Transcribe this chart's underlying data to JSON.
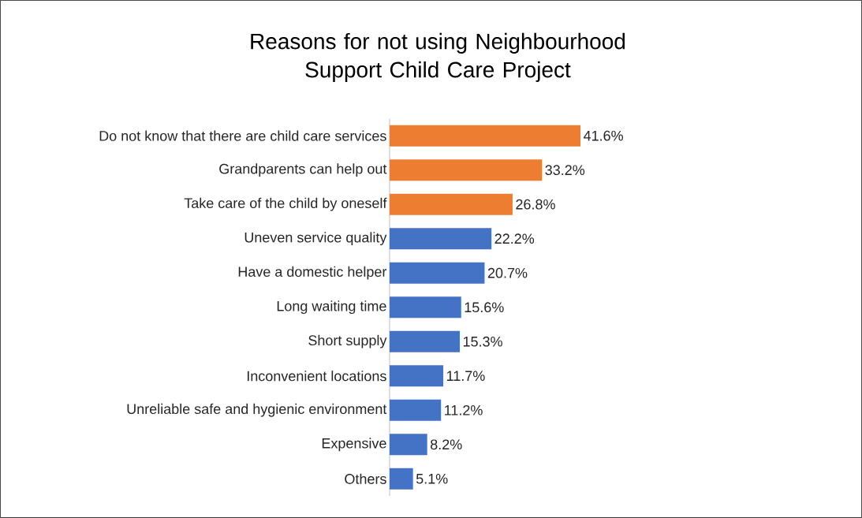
{
  "chart_data": {
    "type": "bar",
    "orientation": "horizontal",
    "title": "Reasons for not using Neighbourhood Support Child Care Project",
    "categories": [
      "Do not know that there are child care services",
      "Grandparents can help out",
      "Take care of the child by oneself",
      "Uneven service quality",
      "Have a domestic helper",
      "Long waiting time",
      "Short supply",
      "Inconvenient locations",
      "Unreliable safe and hygienic environment",
      "Expensive",
      "Others"
    ],
    "values": [
      41.6,
      33.2,
      26.8,
      22.2,
      20.7,
      15.6,
      15.3,
      11.7,
      11.2,
      8.2,
      5.1
    ],
    "value_labels": [
      "41.6%",
      "33.2%",
      "26.8%",
      "22.2%",
      "20.7%",
      "15.6%",
      "15.3%",
      "11.7%",
      "11.2%",
      "8.2%",
      "5.1%"
    ],
    "colors": [
      "#ed7d31",
      "#ed7d31",
      "#ed7d31",
      "#4472c4",
      "#4472c4",
      "#4472c4",
      "#4472c4",
      "#4472c4",
      "#4472c4",
      "#4472c4",
      "#4472c4"
    ]
  }
}
